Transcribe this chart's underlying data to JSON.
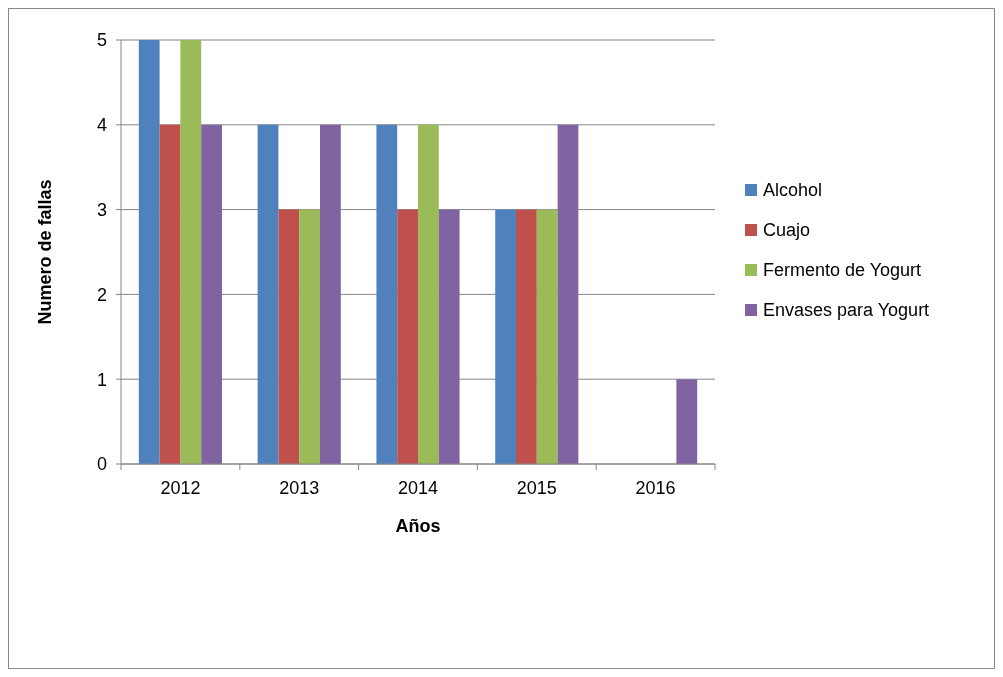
{
  "chart_data": {
    "type": "bar",
    "xlabel": "Años",
    "ylabel": "Numero de fallas",
    "categories": [
      "2012",
      "2013",
      "2014",
      "2015",
      "2016"
    ],
    "series": [
      {
        "name": "Alcohol",
        "color": "#4f81bd",
        "values": [
          5,
          4,
          4,
          3,
          0
        ]
      },
      {
        "name": "Cuajo",
        "color": "#c0504d",
        "values": [
          4,
          3,
          3,
          3,
          0
        ]
      },
      {
        "name": "Fermento de Yogurt",
        "color": "#9bbb59",
        "values": [
          5,
          3,
          4,
          3,
          0
        ]
      },
      {
        "name": "Envases para Yogurt",
        "color": "#8064a2",
        "values": [
          4,
          4,
          3,
          4,
          1
        ]
      }
    ],
    "ylim": [
      0,
      5
    ],
    "yticks": [
      0,
      1,
      2,
      3,
      4,
      5
    ],
    "grid": "y",
    "legend": "right"
  }
}
